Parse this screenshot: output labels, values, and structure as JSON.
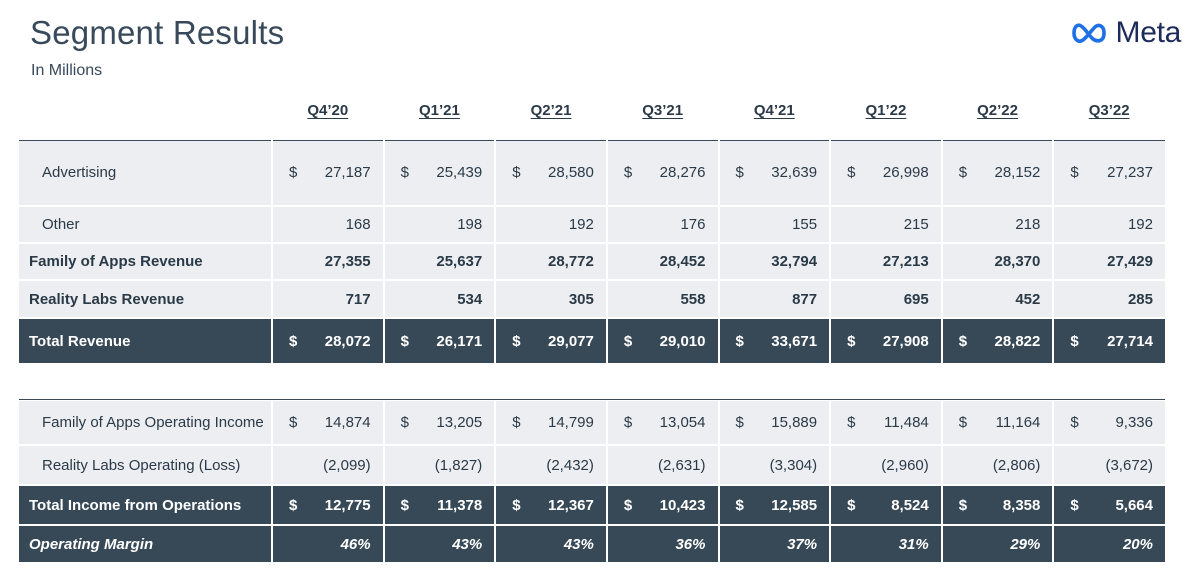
{
  "header": {
    "title": "Segment Results",
    "subtitle": "In Millions",
    "logo_text": "Meta",
    "logo_icon": "meta-infinity-icon",
    "logo_color": "#1c2b5a"
  },
  "table": {
    "columns": [
      "Q4’20",
      "Q1’21",
      "Q2’21",
      "Q3’21",
      "Q4’21",
      "Q1’22",
      "Q2’22",
      "Q3’22"
    ],
    "rows": {
      "advertising": {
        "label": "Advertising",
        "currency": "$",
        "values": [
          "27,187",
          "25,439",
          "28,580",
          "28,276",
          "32,639",
          "26,998",
          "28,152",
          "27,237"
        ]
      },
      "other": {
        "label": "Other",
        "values": [
          "168",
          "198",
          "192",
          "176",
          "155",
          "215",
          "218",
          "192"
        ]
      },
      "foa_revenue": {
        "label": "Family of Apps Revenue",
        "values": [
          "27,355",
          "25,637",
          "28,772",
          "28,452",
          "32,794",
          "27,213",
          "28,370",
          "27,429"
        ]
      },
      "rl_revenue": {
        "label": "Reality Labs Revenue",
        "values": [
          "717",
          "534",
          "305",
          "558",
          "877",
          "695",
          "452",
          "285"
        ]
      },
      "total_revenue": {
        "label": "Total Revenue",
        "currency": "$",
        "values": [
          "28,072",
          "26,171",
          "29,077",
          "29,010",
          "33,671",
          "27,908",
          "28,822",
          "27,714"
        ]
      },
      "foa_income": {
        "label": "Family of Apps Operating Income",
        "currency": "$",
        "values": [
          "14,874",
          "13,205",
          "14,799",
          "13,054",
          "15,889",
          "11,484",
          "11,164",
          "9,336"
        ]
      },
      "rl_loss": {
        "label": "Reality Labs Operating (Loss)",
        "values": [
          "(2,099)",
          "(1,827)",
          "(2,432)",
          "(2,631)",
          "(3,304)",
          "(2,960)",
          "(2,806)",
          "(3,672)"
        ]
      },
      "total_income": {
        "label": "Total Income from Operations",
        "currency": "$",
        "values": [
          "12,775",
          "11,378",
          "12,367",
          "10,423",
          "12,585",
          "8,524",
          "8,358",
          "5,664"
        ]
      },
      "operating_margin": {
        "label": "Operating Margin",
        "values": [
          "46%",
          "43%",
          "43%",
          "36%",
          "37%",
          "31%",
          "29%",
          "20%"
        ]
      }
    }
  },
  "colors": {
    "dark_row_bg": "#374957",
    "light_row_bg": "#eceef2",
    "text": "#2b3a47"
  }
}
